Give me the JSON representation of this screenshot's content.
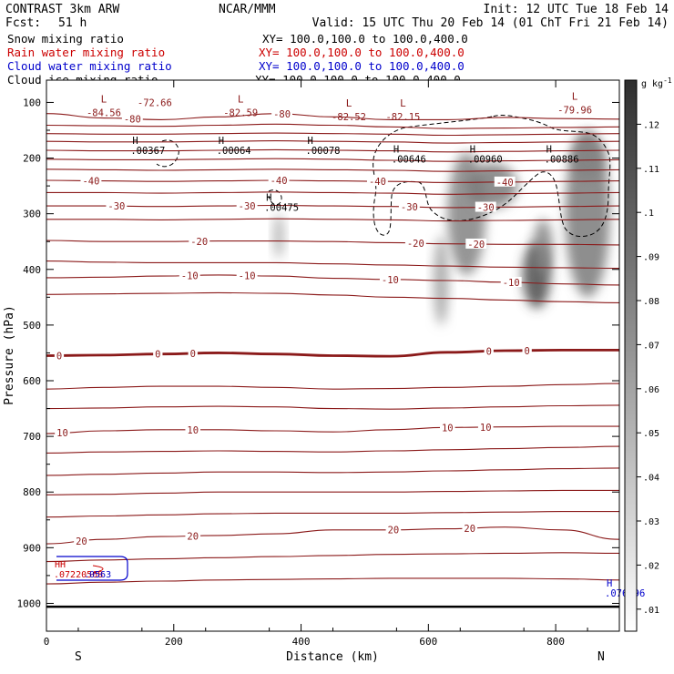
{
  "header": {
    "title": "CONTRAST  3km ARW",
    "center": "NCAR/MMM",
    "init": "Init: 12 UTC Tue 18 Feb 14",
    "fcst_label": "Fcst:",
    "fcst_value": "51 h",
    "valid": "Valid: 15 UTC Thu 20 Feb 14 (01 ChT Fri 21 Feb 14)"
  },
  "legend": [
    {
      "label": "Snow mixing ratio",
      "xy": "XY= 100.0,100.0 to 100.0,400.0",
      "color": "#000000"
    },
    {
      "label": "Rain water mixing ratio",
      "xy": "XY= 100.0,100.0 to 100.0,400.0",
      "color": "#cc0000"
    },
    {
      "label": "Cloud water mixing ratio",
      "xy": "XY= 100.0,100.0 to 100.0,400.0",
      "color": "#0000cc"
    },
    {
      "label": "Cloud ice mixing ratio",
      "xy": "XY= 100.0,100.0 to 100.0,400.0",
      "color": "#000000"
    }
  ],
  "colorbar": {
    "unit": "g kg",
    "unit_exp": "-1",
    "ticks": [
      ".01",
      ".02",
      ".03",
      ".04",
      ".05",
      ".06",
      ".07",
      ".08",
      ".09",
      ".1",
      ".11",
      ".12"
    ]
  },
  "chart_data": {
    "type": "cross-section",
    "xlabel": "Distance (km)",
    "ylabel": "Pressure (hPa)",
    "xlim": [
      0,
      900
    ],
    "ylim": [
      1050,
      60
    ],
    "xticks": [
      "0",
      "200",
      "400",
      "600",
      "800"
    ],
    "yticks": [
      "100",
      "200",
      "300",
      "400",
      "500",
      "600",
      "700",
      "800",
      "900",
      "1000"
    ],
    "x_start_label": "S",
    "x_end_label": "N",
    "line_color": "#8b1a1a",
    "isotherms": [
      {
        "level": "-80",
        "p": [
          120,
          128,
          131,
          126,
          120,
          126,
          131,
          131,
          127,
          129,
          130
        ],
        "labels": [
          {
            "x": 135,
            "text": "-80"
          },
          {
            "x": 370,
            "text": "-80"
          }
        ]
      },
      {
        "level": "-70",
        "p": [
          141,
          142,
          143,
          141,
          139,
          141,
          144,
          147,
          146,
          145,
          144
        ],
        "labels": []
      },
      {
        "level": "-65",
        "p": [
          156,
          157,
          157,
          156,
          155,
          156,
          157,
          159,
          158,
          157,
          156
        ],
        "labels": []
      },
      {
        "level": "-60",
        "p": [
          170,
          171,
          171,
          170,
          169,
          170,
          171,
          173,
          172,
          171,
          170
        ],
        "labels": []
      },
      {
        "level": "-55",
        "p": [
          186,
          187,
          187,
          186,
          185,
          186,
          187,
          189,
          188,
          187,
          186
        ],
        "labels": []
      },
      {
        "level": "-50",
        "p": [
          202,
          203,
          203,
          202,
          201,
          202,
          204,
          206,
          205,
          204,
          203
        ],
        "labels": []
      },
      {
        "level": "-45",
        "p": [
          220,
          221,
          222,
          221,
          220,
          221,
          222,
          224,
          223,
          222,
          221
        ],
        "labels": []
      },
      {
        "level": "-40",
        "p": [
          240,
          241,
          242,
          241,
          240,
          241,
          242,
          244,
          243,
          242,
          241
        ],
        "labels": [
          {
            "x": 70,
            "text": "-40"
          },
          {
            "x": 365,
            "text": "-40"
          },
          {
            "x": 520,
            "text": "-40"
          },
          {
            "x": 720,
            "text": "-40"
          }
        ]
      },
      {
        "level": "-35",
        "p": [
          262,
          262,
          263,
          262,
          261,
          262,
          263,
          265,
          264,
          263,
          262
        ],
        "labels": []
      },
      {
        "level": "-30",
        "p": [
          286,
          286,
          287,
          286,
          285,
          286,
          287,
          289,
          288,
          287,
          286
        ],
        "labels": [
          {
            "x": 110,
            "text": "-30"
          },
          {
            "x": 315,
            "text": "-30"
          },
          {
            "x": 570,
            "text": "-30"
          },
          {
            "x": 690,
            "text": "-30"
          }
        ]
      },
      {
        "level": "-25",
        "p": [
          310,
          310,
          311,
          310,
          309,
          310,
          311,
          313,
          312,
          311,
          310
        ],
        "labels": []
      },
      {
        "level": "-20",
        "p": [
          348,
          350,
          350,
          349,
          349,
          350,
          352,
          354,
          355,
          355,
          356
        ],
        "labels": [
          {
            "x": 240,
            "text": "-20"
          },
          {
            "x": 580,
            "text": "-20"
          },
          {
            "x": 675,
            "text": "-20"
          }
        ]
      },
      {
        "level": "-15",
        "p": [
          385,
          387,
          388,
          388,
          388,
          390,
          392,
          394,
          396,
          397,
          398
        ],
        "labels": []
      },
      {
        "level": "-10",
        "p": [
          415,
          414,
          412,
          410,
          412,
          416,
          418,
          420,
          423,
          426,
          428
        ],
        "labels": [
          {
            "x": 225,
            "text": "-10"
          },
          {
            "x": 315,
            "text": "-10"
          },
          {
            "x": 540,
            "text": "-10"
          },
          {
            "x": 730,
            "text": "-10"
          }
        ]
      },
      {
        "level": "-5",
        "p": [
          445,
          444,
          443,
          442,
          443,
          446,
          450,
          452,
          455,
          458,
          460
        ],
        "labels": []
      },
      {
        "level": "0",
        "p": [
          555,
          554,
          552,
          550,
          552,
          555,
          556,
          549,
          546,
          545,
          545
        ],
        "bold": true,
        "labels": [
          {
            "x": 20,
            "text": "0"
          },
          {
            "x": 175,
            "text": "0"
          },
          {
            "x": 230,
            "text": "0"
          },
          {
            "x": 695,
            "text": "0"
          },
          {
            "x": 755,
            "text": "0"
          }
        ]
      },
      {
        "level": "5",
        "p": [
          615,
          612,
          610,
          610,
          612,
          615,
          614,
          612,
          610,
          607,
          605
        ],
        "labels": []
      },
      {
        "level": "7",
        "p": [
          650,
          649,
          647,
          646,
          647,
          650,
          651,
          649,
          647,
          645,
          644
        ],
        "labels": []
      },
      {
        "level": "10",
        "p": [
          695,
          690,
          688,
          688,
          690,
          692,
          688,
          684,
          683,
          682,
          682
        ],
        "labels": [
          {
            "x": 25,
            "text": "10"
          },
          {
            "x": 230,
            "text": "10"
          },
          {
            "x": 630,
            "text": "10"
          },
          {
            "x": 690,
            "text": "10"
          }
        ]
      },
      {
        "level": "12",
        "p": [
          730,
          728,
          727,
          726,
          727,
          728,
          726,
          724,
          722,
          720,
          718
        ],
        "labels": []
      },
      {
        "level": "14",
        "p": [
          770,
          768,
          766,
          764,
          764,
          765,
          764,
          762,
          760,
          758,
          757
        ],
        "labels": []
      },
      {
        "level": "16",
        "p": [
          805,
          804,
          802,
          800,
          800,
          800,
          800,
          799,
          798,
          797,
          797
        ],
        "labels": []
      },
      {
        "level": "18",
        "p": [
          845,
          843,
          841,
          839,
          838,
          838,
          838,
          837,
          836,
          835,
          835
        ],
        "labels": []
      },
      {
        "level": "20",
        "p": [
          893,
          885,
          880,
          878,
          875,
          868,
          868,
          866,
          863,
          868,
          885
        ],
        "labels": [
          {
            "x": 55,
            "text": "20"
          },
          {
            "x": 230,
            "text": "20"
          },
          {
            "x": 545,
            "text": "20"
          },
          {
            "x": 665,
            "text": "20"
          }
        ]
      },
      {
        "level": "22",
        "p": [
          925,
          922,
          920,
          918,
          916,
          914,
          912,
          911,
          910,
          909,
          910
        ],
        "labels": []
      },
      {
        "level": "24",
        "p": [
          965,
          962,
          960,
          958,
          957,
          956,
          955,
          955,
          955,
          956,
          958
        ],
        "labels": []
      }
    ],
    "surface_pressure": 1006,
    "low_markers": [
      {
        "x": 50,
        "p": 108,
        "letter": "L",
        "value": "-84.56"
      },
      {
        "x": 130,
        "p": 90,
        "letter": "",
        "value": "-72.66"
      },
      {
        "x": 265,
        "p": 108,
        "letter": "L",
        "value": "-82.59"
      },
      {
        "x": 435,
        "p": 116,
        "letter": "L",
        "value": "-82.52"
      },
      {
        "x": 520,
        "p": 116,
        "letter": "L",
        "value": "-82.15"
      },
      {
        "x": 790,
        "p": 103,
        "letter": "L",
        "value": "-79.96"
      }
    ],
    "high_markers": [
      {
        "x": 135,
        "p": 188,
        "letter": "H",
        "value": ".00367",
        "color": "#000000"
      },
      {
        "x": 270,
        "p": 188,
        "letter": "H",
        "value": ".00064",
        "color": "#000000"
      },
      {
        "x": 410,
        "p": 188,
        "letter": "H",
        "value": ".00078",
        "color": "#000000"
      },
      {
        "x": 545,
        "p": 203,
        "letter": "H",
        "value": ".00646",
        "color": "#000000"
      },
      {
        "x": 665,
        "p": 203,
        "letter": "H",
        "value": ".00960",
        "color": "#000000"
      },
      {
        "x": 785,
        "p": 203,
        "letter": "H",
        "value": ".00886",
        "color": "#000000"
      },
      {
        "x": 345,
        "p": 290,
        "letter": "H",
        "value": ".00475",
        "color": "#000000"
      },
      {
        "x": 880,
        "p": 983,
        "letter": "H",
        "value": ".076896",
        "color": "#0000cc"
      }
    ],
    "left_cluster_labels": [
      {
        "text": "HH",
        "color": "#cc0000"
      },
      {
        "text": ".07220568",
        "color": "#cc0000"
      },
      {
        "text": ".0563",
        "color": "#0000cc"
      }
    ],
    "snow_cells": [
      {
        "x": 365,
        "p": 340,
        "rx": 8,
        "rp": 40,
        "i": 0.25
      },
      {
        "x": 660,
        "p": 300,
        "rx": 30,
        "rp": 110,
        "i": 0.5
      },
      {
        "x": 700,
        "p": 250,
        "rx": 40,
        "rp": 40,
        "i": 0.55
      },
      {
        "x": 620,
        "p": 420,
        "rx": 12,
        "rp": 80,
        "i": 0.3
      },
      {
        "x": 770,
        "p": 410,
        "rx": 22,
        "rp": 60,
        "i": 0.85
      },
      {
        "x": 780,
        "p": 360,
        "rx": 15,
        "rp": 50,
        "i": 0.5
      },
      {
        "x": 850,
        "p": 300,
        "rx": 35,
        "rp": 150,
        "i": 0.55
      },
      {
        "x": 850,
        "p": 200,
        "rx": 25,
        "rp": 40,
        "i": 0.5
      }
    ]
  }
}
